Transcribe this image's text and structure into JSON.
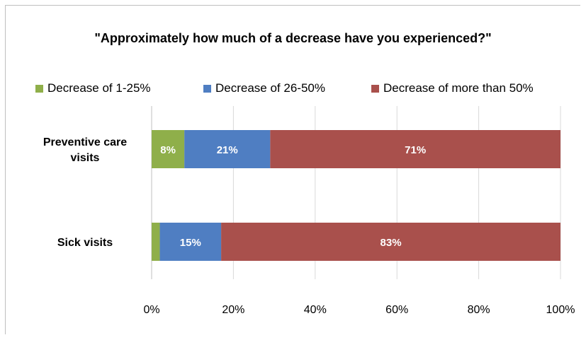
{
  "chart_data": {
    "type": "bar",
    "orientation": "horizontal",
    "stacked": true,
    "title": "\"Approximately how much of a decrease have you experienced?\"",
    "categories": [
      [
        "Preventive care",
        "visits"
      ],
      [
        "Sick visits"
      ]
    ],
    "series": [
      {
        "name": "Decrease of 1-25%",
        "color": "#8faf4a",
        "values": [
          8,
          2
        ],
        "labels": [
          "8%",
          ""
        ]
      },
      {
        "name": "Decrease of 26-50%",
        "color": "#4f7ec2",
        "values": [
          21,
          15
        ],
        "labels": [
          "21%",
          "15%"
        ]
      },
      {
        "name": "Decrease of more than 50%",
        "color": "#a9504c",
        "values": [
          71,
          83
        ],
        "labels": [
          "71%",
          "83%"
        ]
      }
    ],
    "xlim": [
      0,
      100
    ],
    "xticks": [
      "0%",
      "20%",
      "40%",
      "60%",
      "80%",
      "100%"
    ],
    "grid": true,
    "legend_position": "top"
  }
}
